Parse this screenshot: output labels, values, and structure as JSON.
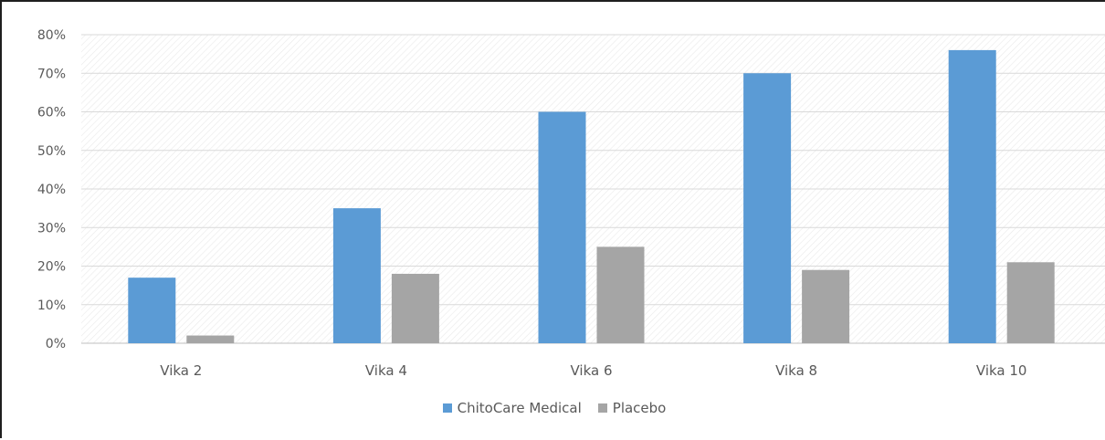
{
  "chart_data": {
    "type": "bar",
    "categories": [
      "Vika 2",
      "Vika 4",
      "Vika 6",
      "Vika 8",
      "Vika 10"
    ],
    "series": [
      {
        "name": "ChitoCare Medical",
        "values": [
          17,
          35,
          60,
          70,
          76
        ],
        "color": "#5B9BD5"
      },
      {
        "name": "Placebo",
        "values": [
          2,
          18,
          25,
          19,
          21
        ],
        "color": "#A5A5A5"
      }
    ],
    "ylim": [
      0,
      80
    ],
    "yticks": [
      "0%",
      "10%",
      "20%",
      "30%",
      "40%",
      "50%",
      "60%",
      "70%",
      "80%"
    ],
    "grid": true,
    "legend_position": "bottom",
    "title": "",
    "xlabel": "",
    "ylabel": ""
  }
}
